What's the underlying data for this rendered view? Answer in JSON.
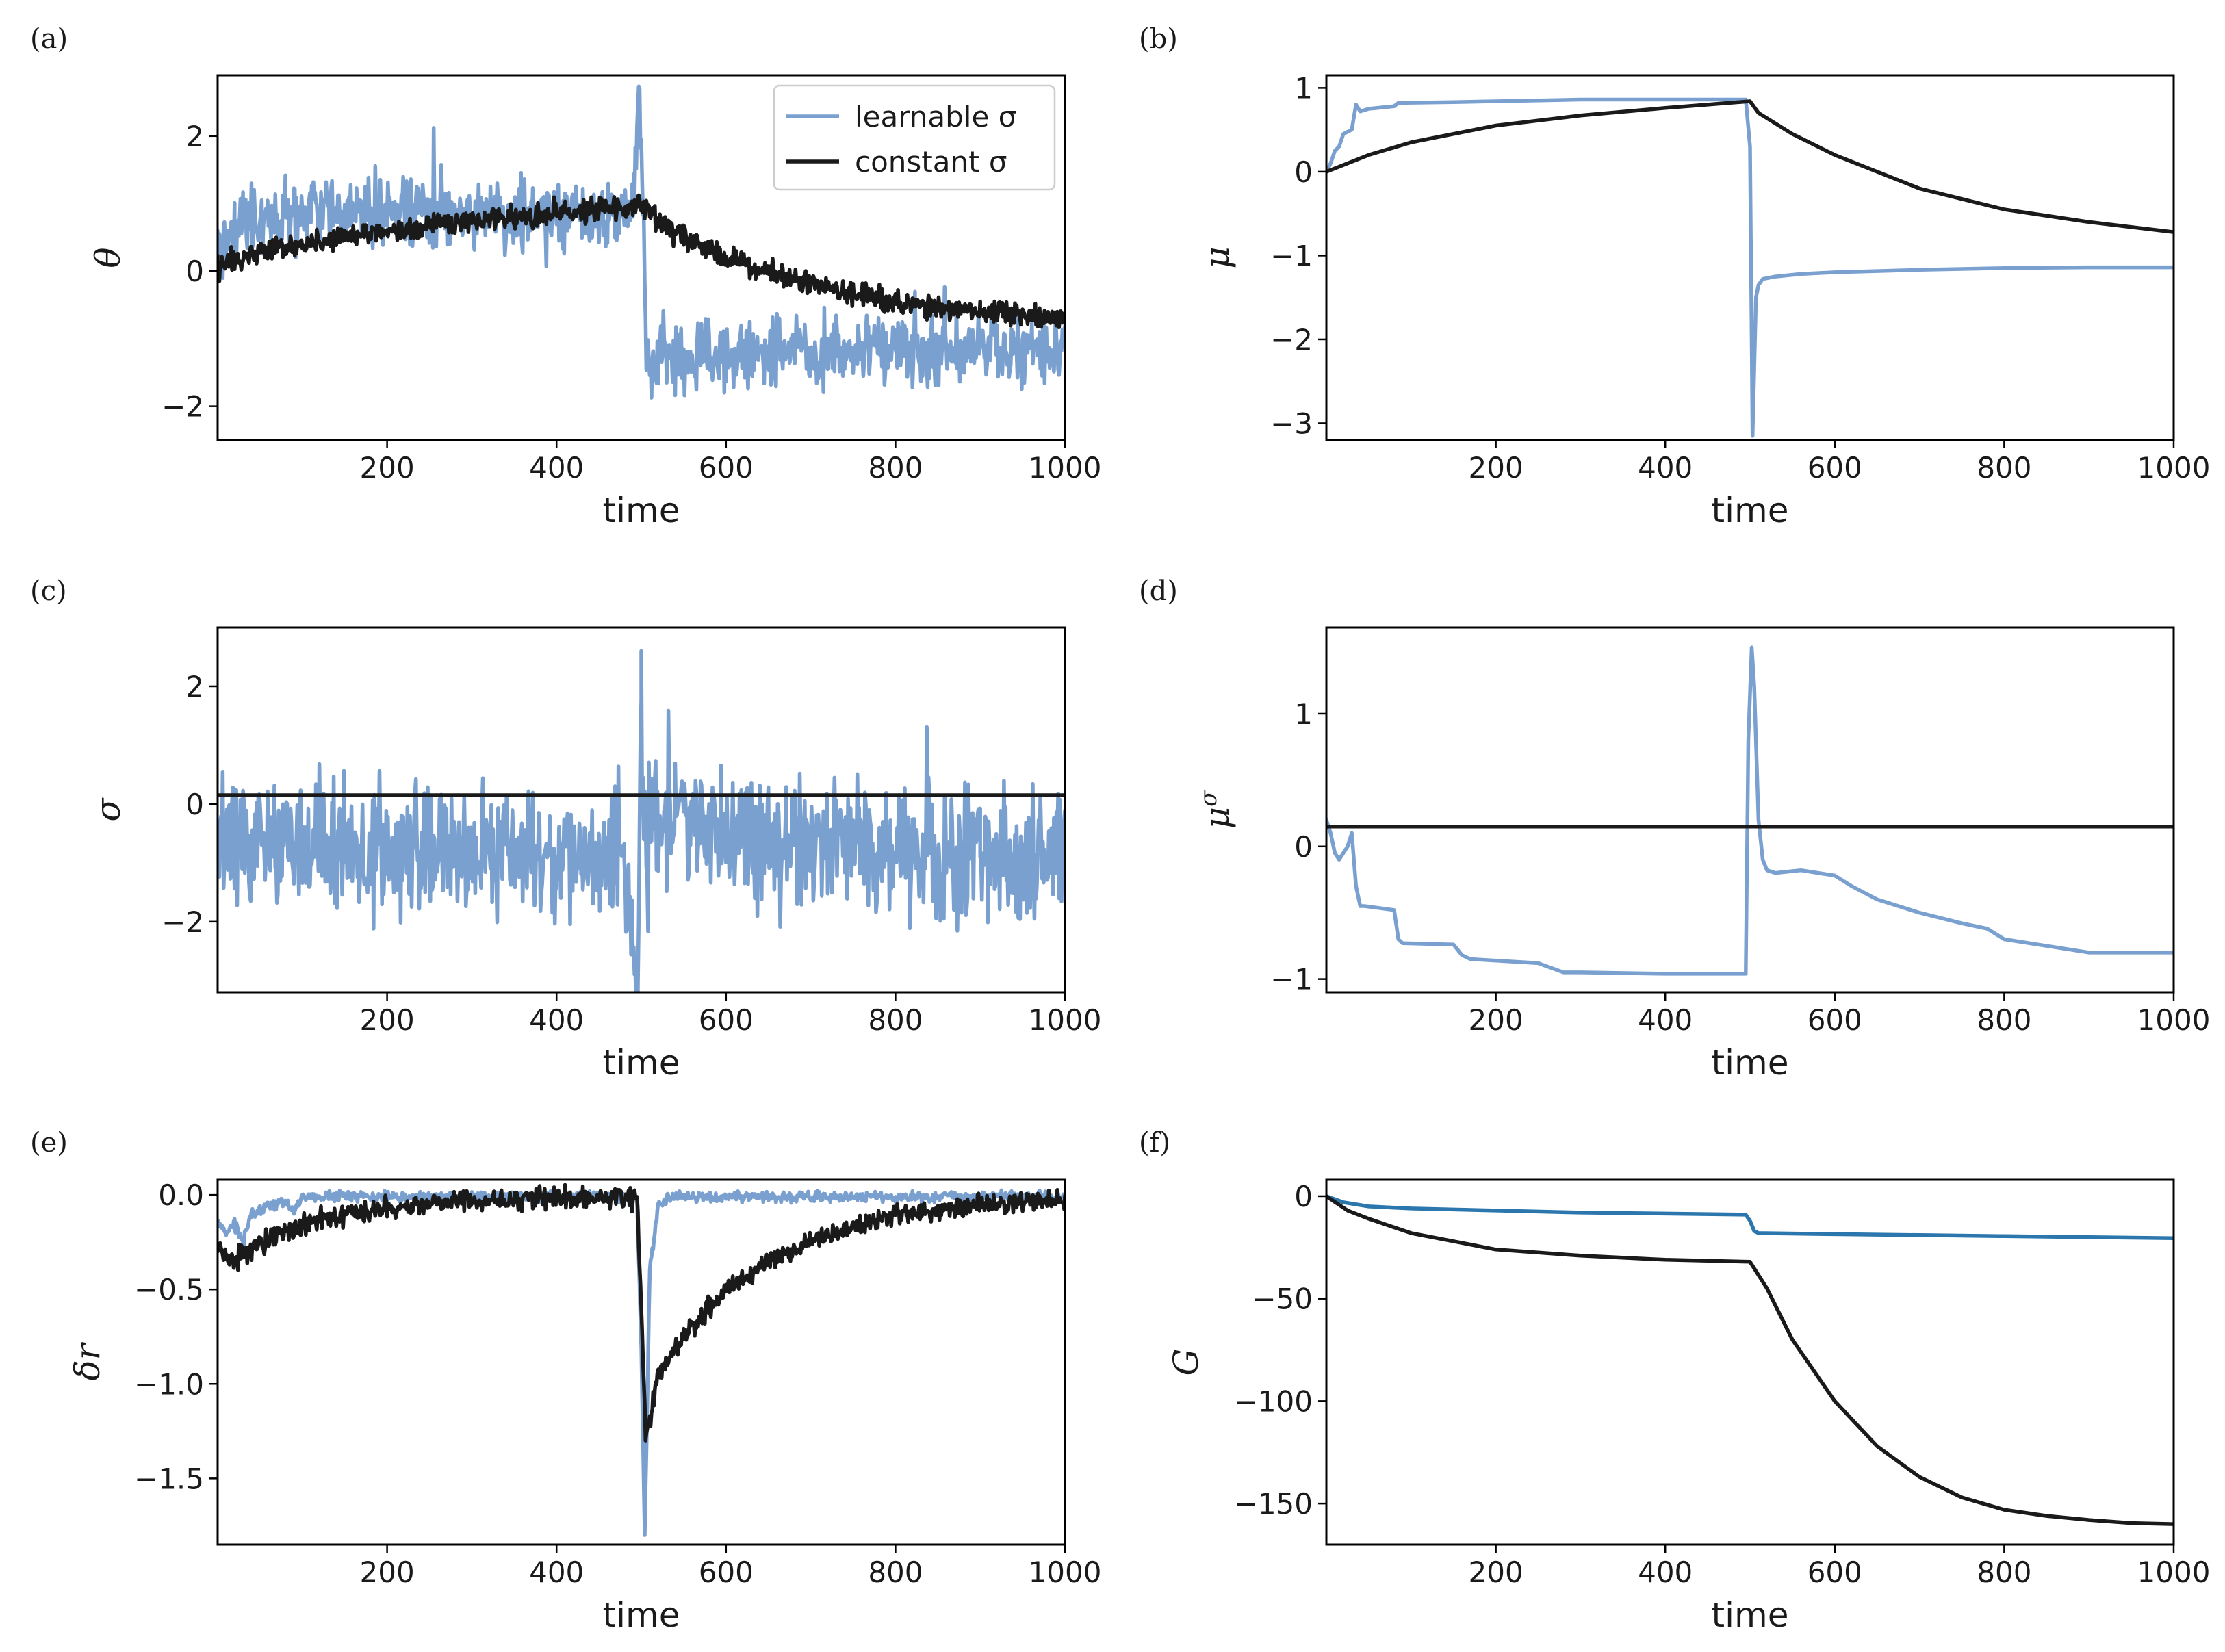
{
  "colors": {
    "learnable": "#7aa0cf",
    "constant": "#1a1a1a",
    "blue_dark": "#2a76ad",
    "axes": "#000000"
  },
  "chart_data": [
    {
      "id": "a",
      "panel_label": "(a)",
      "type": "line",
      "xlabel": "time",
      "ylabel": "θ",
      "xlim": [
        0,
        1000
      ],
      "ylim": [
        -2.5,
        2.9
      ],
      "xticks": [
        200,
        400,
        600,
        800,
        1000
      ],
      "xtick_labels": [
        "200",
        "400",
        "600",
        "800",
        "1000"
      ],
      "yticks": [
        -2,
        0,
        2
      ],
      "ytick_labels": [
        "−2",
        "0",
        "2"
      ],
      "legend": {
        "position": "top-right",
        "entries": [
          "learnable σ",
          "constant σ"
        ]
      },
      "series": [
        {
          "name": "learnable σ",
          "color": "#7aa0cf",
          "noise": 0.35,
          "spikes": true,
          "x": [
            0,
            10,
            20,
            30,
            40,
            60,
            80,
            120,
            200,
            300,
            400,
            490,
            498,
            502,
            506,
            520,
            600,
            700,
            800,
            900,
            1000
          ],
          "y": [
            0.2,
            0.5,
            0.6,
            0.7,
            0.78,
            0.8,
            0.82,
            0.85,
            0.85,
            0.85,
            0.85,
            0.86,
            2.7,
            1.0,
            -1.4,
            -1.35,
            -1.25,
            -1.2,
            -1.15,
            -1.13,
            -1.12
          ]
        },
        {
          "name": "constant σ",
          "color": "#1a1a1a",
          "noise": 0.12,
          "x": [
            0,
            50,
            100,
            200,
            300,
            400,
            500,
            550,
            600,
            700,
            800,
            900,
            1000
          ],
          "y": [
            0.05,
            0.3,
            0.4,
            0.6,
            0.75,
            0.85,
            0.95,
            0.5,
            0.2,
            -0.2,
            -0.45,
            -0.6,
            -0.7
          ]
        }
      ]
    },
    {
      "id": "b",
      "panel_label": "(b)",
      "type": "line",
      "xlabel": "time",
      "ylabel": "μ",
      "xlim": [
        0,
        1000
      ],
      "ylim": [
        -3.2,
        1.15
      ],
      "xticks": [
        200,
        400,
        600,
        800,
        1000
      ],
      "xtick_labels": [
        "200",
        "400",
        "600",
        "800",
        "1000"
      ],
      "yticks": [
        -3,
        -2,
        -1,
        0,
        1
      ],
      "ytick_labels": [
        "−3",
        "−2",
        "−1",
        "0",
        "1"
      ],
      "series": [
        {
          "name": "learnable σ",
          "color": "#7aa0cf",
          "x": [
            0,
            5,
            10,
            15,
            20,
            30,
            35,
            40,
            50,
            80,
            85,
            150,
            200,
            300,
            400,
            495,
            500,
            503,
            507,
            510,
            515,
            530,
            560,
            600,
            700,
            800,
            900,
            1000
          ],
          "y": [
            0.0,
            0.1,
            0.25,
            0.3,
            0.45,
            0.5,
            0.8,
            0.72,
            0.75,
            0.78,
            0.82,
            0.83,
            0.84,
            0.86,
            0.86,
            0.86,
            0.3,
            -3.15,
            -1.5,
            -1.35,
            -1.28,
            -1.25,
            -1.22,
            -1.2,
            -1.17,
            -1.15,
            -1.14,
            -1.14
          ]
        },
        {
          "name": "constant σ",
          "color": "#1a1a1a",
          "x": [
            0,
            50,
            100,
            200,
            300,
            400,
            500,
            510,
            550,
            600,
            700,
            800,
            900,
            1000
          ],
          "y": [
            0.0,
            0.2,
            0.35,
            0.55,
            0.67,
            0.76,
            0.84,
            0.7,
            0.45,
            0.2,
            -0.2,
            -0.45,
            -0.6,
            -0.72
          ]
        }
      ]
    },
    {
      "id": "c",
      "panel_label": "(c)",
      "type": "line",
      "xlabel": "time",
      "ylabel": "σ",
      "xlim": [
        0,
        1000
      ],
      "ylim": [
        -3.2,
        3.0
      ],
      "xticks": [
        200,
        400,
        600,
        800,
        1000
      ],
      "xtick_labels": [
        "200",
        "400",
        "600",
        "800",
        "1000"
      ],
      "yticks": [
        -2,
        0,
        2
      ],
      "ytick_labels": [
        "−2",
        "0",
        "2"
      ],
      "series": [
        {
          "name": "learnable σ",
          "color": "#7aa0cf",
          "noise": 0.75,
          "spikes": true,
          "x": [
            0,
            100,
            200,
            300,
            400,
            480,
            496,
            500,
            503,
            510,
            560,
            600,
            700,
            800,
            900,
            1000
          ],
          "y": [
            -0.6,
            -0.7,
            -0.8,
            -0.9,
            -0.9,
            -0.95,
            -3.1,
            2.6,
            0.0,
            -0.2,
            -0.3,
            -0.5,
            -0.7,
            -0.85,
            -0.9,
            -0.9
          ]
        },
        {
          "name": "constant σ",
          "color": "#1a1a1a",
          "x": [
            0,
            1000
          ],
          "y": [
            0.15,
            0.15
          ]
        }
      ]
    },
    {
      "id": "d",
      "panel_label": "(d)",
      "type": "line",
      "xlabel": "time",
      "ylabel": "μ",
      "ylabel_sup": "σ",
      "xlim": [
        0,
        1000
      ],
      "ylim": [
        -1.1,
        1.65
      ],
      "xticks": [
        200,
        400,
        600,
        800,
        1000
      ],
      "xtick_labels": [
        "200",
        "400",
        "600",
        "800",
        "1000"
      ],
      "yticks": [
        -1,
        0,
        1
      ],
      "ytick_labels": [
        "−1",
        "0",
        "1"
      ],
      "series": [
        {
          "name": "learnable σ",
          "color": "#7aa0cf",
          "x": [
            0,
            5,
            10,
            15,
            20,
            25,
            30,
            35,
            40,
            45,
            80,
            85,
            90,
            150,
            160,
            170,
            250,
            280,
            300,
            400,
            495,
            498,
            502,
            505,
            510,
            515,
            520,
            530,
            560,
            600,
            620,
            650,
            700,
            750,
            780,
            800,
            850,
            900,
            1000
          ],
          "y": [
            0.2,
            0.1,
            -0.05,
            -0.1,
            -0.05,
            0.0,
            0.1,
            -0.3,
            -0.45,
            -0.45,
            -0.48,
            -0.7,
            -0.73,
            -0.74,
            -0.82,
            -0.85,
            -0.88,
            -0.95,
            -0.95,
            -0.96,
            -0.96,
            0.8,
            1.5,
            1.2,
            0.2,
            -0.1,
            -0.18,
            -0.2,
            -0.18,
            -0.22,
            -0.3,
            -0.4,
            -0.5,
            -0.58,
            -0.62,
            -0.7,
            -0.75,
            -0.8,
            -0.8
          ]
        },
        {
          "name": "constant σ",
          "color": "#1a1a1a",
          "x": [
            0,
            1000
          ],
          "y": [
            0.15,
            0.15
          ]
        }
      ]
    },
    {
      "id": "e",
      "panel_label": "(e)",
      "type": "line",
      "xlabel": "time",
      "ylabel": "δr",
      "xlim": [
        0,
        1000
      ],
      "ylim": [
        -1.85,
        0.08
      ],
      "xticks": [
        200,
        400,
        600,
        800,
        1000
      ],
      "xtick_labels": [
        "200",
        "400",
        "600",
        "800",
        "1000"
      ],
      "yticks": [
        -1.5,
        -1.0,
        -0.5,
        0.0
      ],
      "ytick_labels": [
        "−1.5",
        "−1.0",
        "−0.5",
        "0.0"
      ],
      "series": [
        {
          "name": "learnable σ",
          "color": "#7aa0cf",
          "noise": 0.02,
          "x": [
            0,
            10,
            20,
            30,
            40,
            60,
            80,
            90,
            100,
            200,
            400,
            495,
            500,
            504,
            510,
            520,
            540,
            600,
            800,
            1000
          ],
          "y": [
            -0.15,
            -0.2,
            -0.15,
            -0.25,
            -0.1,
            -0.05,
            -0.03,
            -0.1,
            -0.01,
            -0.01,
            -0.01,
            -0.01,
            -0.8,
            -1.8,
            -0.4,
            -0.05,
            -0.01,
            -0.01,
            -0.01,
            -0.01
          ]
        },
        {
          "name": "constant σ",
          "color": "#1a1a1a",
          "noise": 0.04,
          "x": [
            0,
            20,
            50,
            100,
            150,
            200,
            300,
            400,
            495,
            500,
            505,
            520,
            550,
            600,
            650,
            700,
            800,
            900,
            1000
          ],
          "y": [
            -0.3,
            -0.35,
            -0.25,
            -0.15,
            -0.1,
            -0.06,
            -0.03,
            -0.015,
            -0.01,
            -0.6,
            -1.3,
            -0.95,
            -0.75,
            -0.5,
            -0.35,
            -0.25,
            -0.1,
            -0.05,
            -0.03
          ]
        }
      ]
    },
    {
      "id": "f",
      "panel_label": "(f)",
      "type": "line",
      "xlabel": "time",
      "ylabel": "G",
      "xlim": [
        0,
        1000
      ],
      "ylim": [
        -170,
        8
      ],
      "xticks": [
        200,
        400,
        600,
        800,
        1000
      ],
      "xtick_labels": [
        "200",
        "400",
        "600",
        "800",
        "1000"
      ],
      "yticks": [
        -150,
        -100,
        -50,
        0
      ],
      "ytick_labels": [
        "−150",
        "−100",
        "−50",
        "0"
      ],
      "series": [
        {
          "name": "learnable σ",
          "color": "#2a76ad",
          "x": [
            0,
            20,
            50,
            100,
            200,
            300,
            400,
            495,
            500,
            505,
            510,
            600,
            700,
            800,
            900,
            1000
          ],
          "y": [
            0,
            -3,
            -5,
            -6,
            -7,
            -8,
            -8.5,
            -9,
            -12,
            -17,
            -18,
            -18.5,
            -19,
            -19.5,
            -20,
            -20.5
          ]
        },
        {
          "name": "constant σ",
          "color": "#1a1a1a",
          "x": [
            0,
            25,
            50,
            100,
            150,
            200,
            300,
            400,
            500,
            520,
            550,
            600,
            650,
            700,
            750,
            800,
            850,
            900,
            950,
            1000
          ],
          "y": [
            0,
            -7,
            -11,
            -18,
            -22,
            -26,
            -29,
            -31,
            -32,
            -45,
            -70,
            -100,
            -122,
            -137,
            -147,
            -153,
            -156,
            -158,
            -159.5,
            -160
          ]
        }
      ]
    }
  ]
}
